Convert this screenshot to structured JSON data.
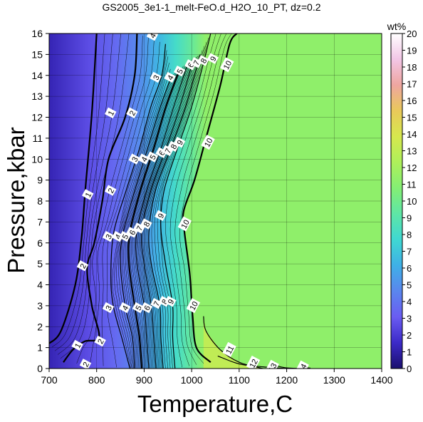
{
  "chart_data": {
    "type": "heatmap",
    "title": "GS2005_3e1-1_melt-FeO.d_H2O_10_PT, dz=0.2",
    "xlabel": "Temperature,C",
    "ylabel": "Pressure,kbar",
    "xlim": [
      700,
      1400
    ],
    "ylim": [
      0,
      16
    ],
    "x_ticks": [
      "700",
      "800",
      "900",
      "1000",
      "1100",
      "1200",
      "1300",
      "1400"
    ],
    "y_ticks": [
      "0",
      "1",
      "2",
      "3",
      "4",
      "5",
      "6",
      "7",
      "8",
      "9",
      "10",
      "11",
      "12",
      "13",
      "14",
      "15",
      "16"
    ],
    "grid": true,
    "colorbar": {
      "label": "wt%",
      "range": [
        0,
        20
      ],
      "ticks": [
        "0",
        "1",
        "2",
        "3",
        "4",
        "5",
        "6",
        "7",
        "8",
        "9",
        "10",
        "11",
        "12",
        "13",
        "14",
        "15",
        "16",
        "17",
        "18",
        "19",
        "20"
      ],
      "colors": [
        "#1a0f6e",
        "#3c2ac8",
        "#6a5cf2",
        "#5a86ee",
        "#3fb0e6",
        "#3fd8d2",
        "#5ee6a6",
        "#84ef74",
        "#aef05a",
        "#d6e84e",
        "#e9c95a",
        "#eea6a0",
        "#f2c6e6",
        "#ffffff"
      ],
      "position": "right"
    },
    "plateau_value": 10.5,
    "plateau_color": "#8fef6a",
    "contours": [
      {
        "level": 1,
        "points": [
          [
            700,
            1.2
          ],
          [
            725,
            1.8
          ],
          [
            755,
            4.0
          ],
          [
            768,
            6.2
          ],
          [
            776,
            8.5
          ],
          [
            790,
            12.2
          ],
          [
            800,
            16
          ]
        ]
      },
      {
        "level": 2,
        "points": [
          [
            730,
            0.3
          ],
          [
            750,
            0.9
          ],
          [
            775,
            1.3
          ],
          [
            805,
            1.5
          ],
          [
            790,
            3.0
          ],
          [
            780,
            4.8
          ],
          [
            795,
            6.0
          ],
          [
            812,
            8.0
          ],
          [
            825,
            10.0
          ],
          [
            860,
            12.0
          ],
          [
            880,
            14.0
          ],
          [
            885,
            16
          ]
        ]
      },
      {
        "level": 3,
        "points": [
          [
            870,
            0
          ],
          [
            855,
            1.3
          ],
          [
            835,
            3.0
          ],
          [
            830,
            4.5
          ],
          [
            836,
            6.5
          ],
          [
            862,
            8.5
          ],
          [
            890,
            10.5
          ],
          [
            914,
            12.5
          ],
          [
            937,
            14.0
          ],
          [
            945,
            15.5
          ]
        ]
      },
      {
        "level": 4,
        "points": [
          [
            880,
            0
          ],
          [
            875,
            1.5
          ],
          [
            860,
            3.0
          ],
          [
            850,
            5.0
          ],
          [
            856,
            6.5
          ],
          [
            880,
            8.5
          ],
          [
            907,
            10.5
          ],
          [
            934,
            12.5
          ],
          [
            958,
            14.0
          ]
        ]
      },
      {
        "level": 5,
        "points": [
          [
            895,
            0
          ],
          [
            890,
            1.5
          ],
          [
            880,
            3.0
          ],
          [
            868,
            5.0
          ],
          [
            870,
            6.5
          ],
          [
            892,
            8.5
          ],
          [
            920,
            10.5
          ],
          [
            946,
            12.5
          ],
          [
            975,
            14.3
          ]
        ]
      },
      {
        "level": 6,
        "points": [
          [
            910,
            0
          ],
          [
            905,
            1.5
          ],
          [
            900,
            3.0
          ],
          [
            885,
            5.0
          ],
          [
            884,
            6.5
          ],
          [
            905,
            8.5
          ],
          [
            935,
            10.5
          ],
          [
            962,
            12.5
          ],
          [
            992,
            14.6
          ]
        ]
      },
      {
        "level": 7,
        "points": [
          [
            925,
            0
          ],
          [
            920,
            1.5
          ],
          [
            915,
            3.0
          ],
          [
            900,
            5.0
          ],
          [
            895,
            6.5
          ],
          [
            914,
            8.5
          ],
          [
            946,
            10.5
          ],
          [
            975,
            12.5
          ],
          [
            1004,
            14.8
          ]
        ]
      },
      {
        "level": 8,
        "points": [
          [
            940,
            0
          ],
          [
            935,
            1.5
          ],
          [
            933,
            3.0
          ],
          [
            915,
            5.0
          ],
          [
            910,
            6.5
          ],
          [
            924,
            8.5
          ],
          [
            956,
            10.5
          ],
          [
            987,
            12.5
          ],
          [
            1018,
            15.0
          ]
        ]
      },
      {
        "level": 9,
        "points": [
          [
            965,
            0
          ],
          [
            960,
            1.5
          ],
          [
            960,
            3.0
          ],
          [
            945,
            5.0
          ],
          [
            935,
            6.8
          ],
          [
            942,
            8.5
          ],
          [
            970,
            10.5
          ],
          [
            1000,
            12.5
          ],
          [
            1025,
            14.6
          ],
          [
            1040,
            16
          ]
        ]
      },
      {
        "level": 10,
        "points": [
          [
            1040,
            0.3
          ],
          [
            1010,
            1.0
          ],
          [
            1002,
            2.5
          ],
          [
            996,
            4.5
          ],
          [
            985,
            6.5
          ],
          [
            983,
            7.5
          ],
          [
            1006,
            9.0
          ],
          [
            1030,
            11.0
          ],
          [
            1060,
            13.5
          ],
          [
            1080,
            15.5
          ],
          [
            1095,
            16
          ]
        ]
      },
      {
        "level": 11,
        "points": [
          [
            1150,
            0
          ],
          [
            1100,
            0.3
          ],
          [
            1060,
            0.9
          ],
          [
            1030,
            1.8
          ],
          [
            1025,
            2.5
          ]
        ]
      },
      {
        "level": 12,
        "points": [
          [
            1200,
            0
          ],
          [
            1150,
            0.08
          ],
          [
            1100,
            0.22
          ],
          [
            1055,
            0.6
          ]
        ]
      },
      {
        "level": 13,
        "points": [
          [
            1240,
            0
          ],
          [
            1200,
            0.03
          ],
          [
            1180,
            0.12
          ]
        ]
      },
      {
        "level": 14,
        "points": [
          [
            1250,
            0.02
          ],
          [
            1230,
            0.05
          ]
        ]
      }
    ],
    "contour_labels": [
      {
        "text": "1",
        "at": [
          760,
          1.1
        ]
      },
      {
        "text": "1",
        "at": [
          782,
          8.3
        ]
      },
      {
        "text": "1",
        "at": [
          830,
          12.2
        ]
      },
      {
        "text": "2",
        "at": [
          777,
          0.2
        ]
      },
      {
        "text": "2",
        "at": [
          808,
          1.3
        ]
      },
      {
        "text": "2",
        "at": [
          771,
          4.9
        ]
      },
      {
        "text": "2",
        "at": [
          830,
          8.5
        ]
      },
      {
        "text": "2",
        "at": [
          875,
          12.2
        ]
      },
      {
        "text": "3",
        "at": [
          825,
          2.9
        ]
      },
      {
        "text": "3",
        "at": [
          825,
          6.3
        ]
      },
      {
        "text": "3",
        "at": [
          880,
          10.0
        ]
      },
      {
        "text": "3",
        "at": [
          925,
          13.9
        ]
      },
      {
        "text": "4",
        "at": [
          860,
          2.9
        ]
      },
      {
        "text": "4",
        "at": [
          845,
          6.3
        ]
      },
      {
        "text": "4",
        "at": [
          900,
          10.0
        ]
      },
      {
        "text": "4",
        "at": [
          955,
          13.9
        ]
      },
      {
        "text": "4",
        "at": [
          918,
          15.9
        ]
      },
      {
        "text": "5",
        "at": [
          888,
          2.9
        ]
      },
      {
        "text": "5",
        "at": [
          860,
          6.3
        ]
      },
      {
        "text": "5",
        "at": [
          918,
          10.1
        ]
      },
      {
        "text": "5",
        "at": [
          975,
          14.2
        ]
      },
      {
        "text": "6",
        "at": [
          906,
          2.9
        ]
      },
      {
        "text": "6",
        "at": [
          875,
          6.5
        ]
      },
      {
        "text": "6",
        "at": [
          937,
          10.3
        ]
      },
      {
        "text": "6",
        "at": [
          998,
          14.5
        ]
      },
      {
        "text": "7",
        "at": [
          926,
          3.1
        ]
      },
      {
        "text": "7",
        "at": [
          890,
          6.7
        ]
      },
      {
        "text": "7",
        "at": [
          950,
          10.4
        ]
      },
      {
        "text": "7",
        "at": [
          1010,
          14.6
        ]
      },
      {
        "text": "8",
        "at": [
          943,
          3.2
        ]
      },
      {
        "text": "8",
        "at": [
          905,
          6.9
        ]
      },
      {
        "text": "8",
        "at": [
          962,
          10.6
        ]
      },
      {
        "text": "8",
        "at": [
          1025,
          14.7
        ]
      },
      {
        "text": "9",
        "at": [
          956,
          3.2
        ]
      },
      {
        "text": "9",
        "at": [
          935,
          7.3
        ]
      },
      {
        "text": "9",
        "at": [
          975,
          10.8
        ]
      },
      {
        "text": "9",
        "at": [
          1045,
          14.8
        ]
      },
      {
        "text": "10",
        "at": [
          1004,
          3.0
        ]
      },
      {
        "text": "10",
        "at": [
          986,
          6.9
        ]
      },
      {
        "text": "10",
        "at": [
          1035,
          10.8
        ]
      },
      {
        "text": "10",
        "at": [
          1075,
          14.5
        ]
      },
      {
        "text": "11",
        "at": [
          1080,
          0.9
        ]
      },
      {
        "text": "12",
        "at": [
          1130,
          0.25
        ]
      },
      {
        "text": "13",
        "at": [
          1170,
          0.05
        ]
      },
      {
        "text": "14",
        "at": [
          1233,
          0.02
        ]
      }
    ]
  }
}
